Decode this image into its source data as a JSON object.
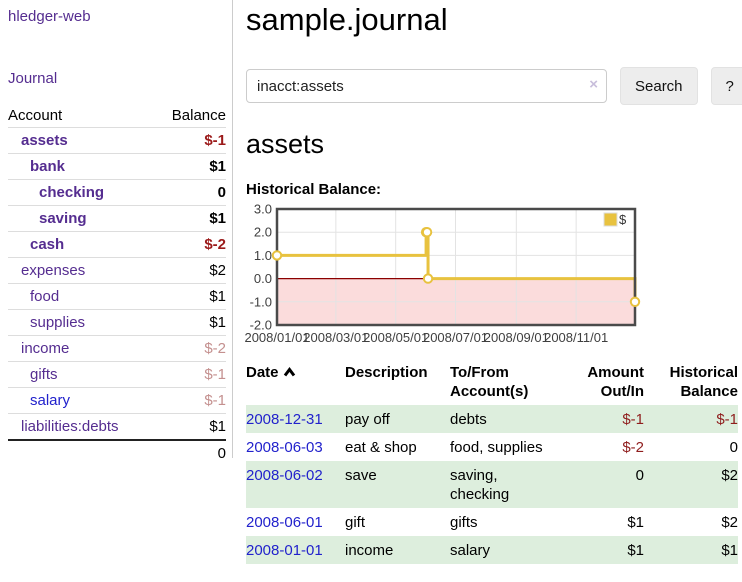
{
  "sidebar": {
    "app_title": "hledger-web",
    "nav": {
      "journal_label": "Journal"
    },
    "accounts_table": {
      "headers": {
        "account": "Account",
        "balance": "Balance"
      },
      "rows": [
        {
          "label": "assets",
          "balance": "$-1",
          "level": 1,
          "emphasized": true,
          "balance_tone": "neg-strong",
          "link_tone": "purple"
        },
        {
          "label": "bank",
          "balance": "$1",
          "level": 2,
          "emphasized": true,
          "balance_tone": "normal",
          "link_tone": "purple"
        },
        {
          "label": "checking",
          "balance": "0",
          "level": 3,
          "emphasized": true,
          "balance_tone": "normal",
          "link_tone": "purple"
        },
        {
          "label": "saving",
          "balance": "$1",
          "level": 3,
          "emphasized": true,
          "balance_tone": "normal",
          "link_tone": "purple"
        },
        {
          "label": "cash",
          "balance": "$-2",
          "level": 2,
          "emphasized": true,
          "balance_tone": "neg-strong",
          "link_tone": "purple"
        },
        {
          "label": "expenses",
          "balance": "$2",
          "level": 1,
          "emphasized": false,
          "balance_tone": "normal",
          "link_tone": "purple"
        },
        {
          "label": "food",
          "balance": "$1",
          "level": 2,
          "emphasized": false,
          "balance_tone": "normal",
          "link_tone": "purple"
        },
        {
          "label": "supplies",
          "balance": "$1",
          "level": 2,
          "emphasized": false,
          "balance_tone": "normal",
          "link_tone": "purple"
        },
        {
          "label": "income",
          "balance": "$-2",
          "level": 1,
          "emphasized": false,
          "balance_tone": "neg-soft",
          "link_tone": "purple"
        },
        {
          "label": "gifts",
          "balance": "$-1",
          "level": 2,
          "emphasized": false,
          "balance_tone": "neg-soft",
          "link_tone": "purple"
        },
        {
          "label": "salary",
          "balance": "$-1",
          "level": 2,
          "emphasized": false,
          "balance_tone": "neg-soft",
          "link_tone": "blue"
        },
        {
          "label": "liabilities:debts",
          "balance": "$1",
          "level": 1,
          "emphasized": false,
          "balance_tone": "normal",
          "link_tone": "purple"
        }
      ],
      "total": "0"
    }
  },
  "main": {
    "page_title": "sample.journal",
    "search": {
      "value": "inacct:assets",
      "clear_icon": "×",
      "search_button": "Search",
      "help_button": "?"
    },
    "account_heading": "assets",
    "chart_label": "Historical Balance:",
    "register": {
      "headers": {
        "date": "Date",
        "description": "Description",
        "accounts_line1": "To/From",
        "accounts_line2": "Account(s)",
        "amount_line1": "Amount",
        "amount_line2": "Out/In",
        "balance_line1": "Historical",
        "balance_line2": "Balance"
      },
      "sort": "ascending",
      "rows": [
        {
          "date": "2008-12-31",
          "description": "pay off",
          "accounts": "debts",
          "amount": "$-1",
          "amount_tone": "neg",
          "balance": "$-1",
          "balance_tone": "neg",
          "striped": true
        },
        {
          "date": "2008-06-03",
          "description": "eat & shop",
          "accounts": "food, supplies",
          "amount": "$-2",
          "amount_tone": "neg",
          "balance": "0",
          "balance_tone": "normal",
          "striped": false
        },
        {
          "date": "2008-06-02",
          "description": "save",
          "accounts": "saving, checking",
          "amount": "0",
          "amount_tone": "normal",
          "balance": "$2",
          "balance_tone": "normal",
          "striped": true
        },
        {
          "date": "2008-06-01",
          "description": "gift",
          "accounts": "gifts",
          "amount": "$1",
          "amount_tone": "normal",
          "balance": "$2",
          "balance_tone": "normal",
          "striped": false
        },
        {
          "date": "2008-01-01",
          "description": "income",
          "accounts": "salary",
          "amount": "$1",
          "amount_tone": "normal",
          "balance": "$1",
          "balance_tone": "normal",
          "striped": true
        }
      ]
    }
  },
  "chart_data": {
    "type": "line",
    "step": true,
    "title": "Historical Balance:",
    "series": [
      {
        "name": "$",
        "color": "#e8c23f",
        "points": [
          [
            "2008-01-01",
            1
          ],
          [
            "2008-06-01",
            2
          ],
          [
            "2008-06-02",
            2
          ],
          [
            "2008-06-03",
            0
          ],
          [
            "2008-12-31",
            -1
          ]
        ]
      }
    ],
    "xlim": [
      "2008-01-01",
      "2008-12-31"
    ],
    "ylim": [
      -2,
      3
    ],
    "x_ticks": [
      "2008/01/01",
      "2008/03/01",
      "2008/05/01",
      "2008/07/01",
      "2008/09/01",
      "2008/11/01"
    ],
    "y_ticks": [
      3.0,
      2.0,
      1.0,
      0.0,
      -1.0,
      -2.0
    ],
    "grid": true,
    "legend_position": "top-right",
    "negative_region_color": "#fbdcdc",
    "zero_line_color": "#8b0000",
    "grid_color": "#e3e3e3",
    "border_color": "#4a4a4a",
    "axis_text_color": "#3f3f3f"
  },
  "colors": {
    "link_purple": "#552d90",
    "link_blue": "#2222cc",
    "negative_strong": "#9b1a1a",
    "negative_soft": "#c4908f",
    "row_stripe_green": "#ddeedd",
    "chart_line_yellow": "#e8c23f"
  }
}
